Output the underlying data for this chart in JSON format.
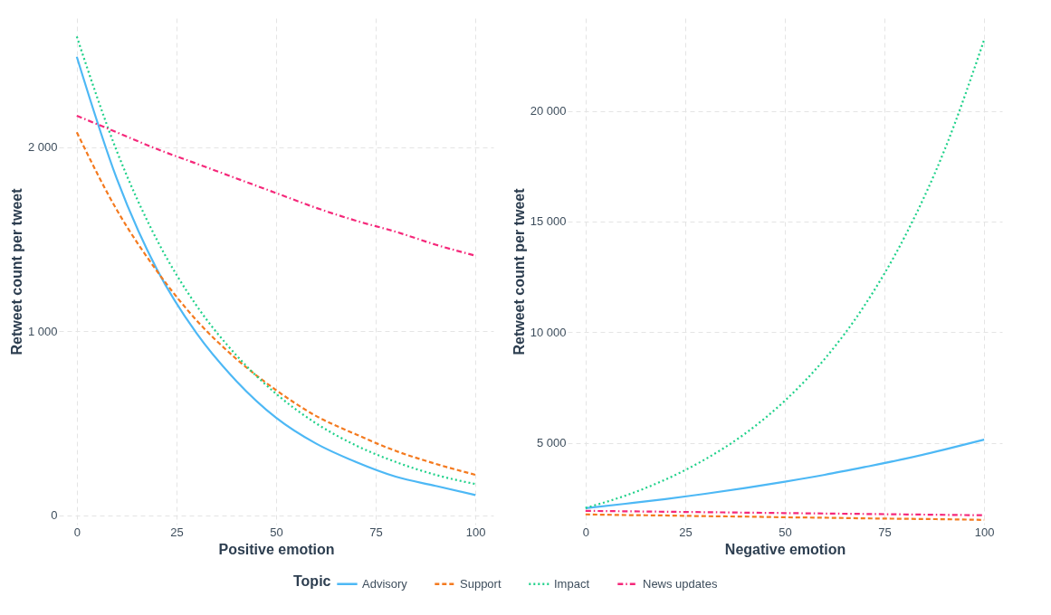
{
  "chart_data": [
    {
      "type": "line",
      "xlabel": "Positive emotion",
      "ylabel": "Retweet count per tweet",
      "legend": "bottom",
      "grid": true,
      "x": [
        0,
        10,
        20,
        30,
        40,
        50,
        60,
        70,
        80,
        90,
        100
      ],
      "xlim": [
        -4.5,
        104.5
      ],
      "xticks": [
        0,
        25,
        50,
        75,
        100
      ],
      "ylim": [
        -50,
        2700
      ],
      "yticks": [
        0,
        {
          "value": 1000,
          "label": "1 000"
        },
        {
          "value": 2000,
          "label": "2 000"
        }
      ],
      "series": [
        {
          "name": "Advisory",
          "color": "#4db8f5",
          "line_style": "solid",
          "values": [
            2490,
            1830,
            1340,
            990,
            730,
            530,
            390,
            290,
            210,
            160,
            110
          ]
        },
        {
          "name": "Support",
          "color": "#f47a1f",
          "line_style": "dashed",
          "values": [
            2080,
            1660,
            1330,
            1060,
            850,
            680,
            540,
            440,
            350,
            280,
            220
          ]
        },
        {
          "name": "Impact",
          "color": "#1fd18a",
          "line_style": "dotted",
          "values": [
            2600,
            1980,
            1500,
            1140,
            870,
            660,
            500,
            380,
            290,
            220,
            170
          ]
        },
        {
          "name": "News updates",
          "color": "#f5287a",
          "line_style": "dashdot",
          "values": [
            2170,
            2080,
            1990,
            1910,
            1830,
            1750,
            1670,
            1600,
            1540,
            1470,
            1410
          ]
        }
      ]
    },
    {
      "type": "line",
      "xlabel": "Negative emotion",
      "ylabel": "Retweet count per tweet",
      "legend_title": "Topic",
      "legend": "bottom",
      "grid": true,
      "x": [
        0,
        10,
        20,
        30,
        40,
        50,
        60,
        70,
        80,
        90,
        100
      ],
      "xlim": [
        -4.5,
        104.5
      ],
      "xticks": [
        0,
        25,
        50,
        75,
        100
      ],
      "ylim": [
        1300,
        24200
      ],
      "yticks": [
        {
          "value": 5000,
          "label": "5 000"
        },
        {
          "value": 10000,
          "label": "10 000"
        },
        {
          "value": 15000,
          "label": "15 000"
        },
        {
          "value": 20000,
          "label": "20 000"
        }
      ],
      "series": [
        {
          "name": "Advisory",
          "color": "#4db8f5",
          "line_style": "solid",
          "values": [
            2040,
            2240,
            2450,
            2690,
            2950,
            3240,
            3550,
            3900,
            4270,
            4690,
            5140
          ]
        },
        {
          "name": "Support",
          "color": "#f47a1f",
          "line_style": "dashed",
          "values": [
            1760,
            1730,
            1710,
            1680,
            1660,
            1630,
            1610,
            1580,
            1560,
            1540,
            1510
          ]
        },
        {
          "name": "Impact",
          "color": "#1fd18a",
          "line_style": "dotted",
          "values": [
            2050,
            2610,
            3330,
            4250,
            5410,
            6900,
            8790,
            11210,
            14290,
            18210,
            23220
          ]
        },
        {
          "name": "News updates",
          "color": "#f5287a",
          "line_style": "dashdot",
          "values": [
            1920,
            1900,
            1880,
            1860,
            1840,
            1820,
            1800,
            1780,
            1760,
            1740,
            1720
          ]
        }
      ]
    }
  ]
}
